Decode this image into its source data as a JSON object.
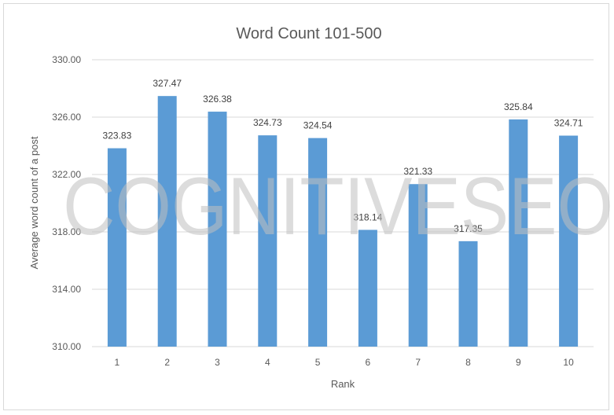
{
  "watermark": "COGNITIVESEO",
  "chart_data": {
    "type": "bar",
    "title": "Word Count 101-500",
    "xlabel": "Rank",
    "ylabel": "Average word count of a post",
    "categories": [
      "1",
      "2",
      "3",
      "4",
      "5",
      "6",
      "7",
      "8",
      "9",
      "10"
    ],
    "values": [
      323.83,
      327.47,
      326.38,
      324.73,
      324.54,
      318.14,
      321.33,
      317.35,
      325.84,
      324.71
    ],
    "data_labels": [
      "323.83",
      "327.47",
      "326.38",
      "324.73",
      "324.54",
      "318.14",
      "321.33",
      "317.35",
      "325.84",
      "324.71"
    ],
    "ylim": [
      310,
      330
    ],
    "yticks": [
      310,
      314,
      318,
      322,
      326,
      330
    ],
    "ytick_labels": [
      "310.00",
      "314.00",
      "318.00",
      "322.00",
      "326.00",
      "330.00"
    ],
    "grid": true,
    "bar_color": "#5b9bd5",
    "grid_color": "#d9d9d9"
  }
}
